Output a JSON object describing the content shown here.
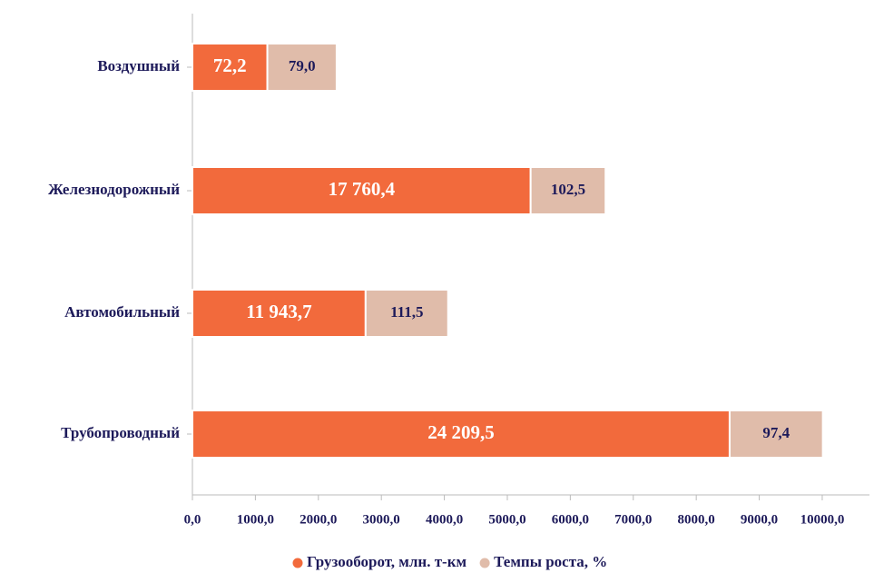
{
  "chart_data": {
    "type": "bar",
    "orientation": "horizontal",
    "stacked": true,
    "categories": [
      "Воздушный",
      "Железнодорожный",
      "Автомобильный",
      "Трубопроводный"
    ],
    "series": [
      {
        "name": "Грузооборот, млн. т-км",
        "color": "#f26a3c",
        "values": [
          1190,
          5370,
          2750,
          8530
        ],
        "value_labels": [
          "72,2",
          "17 760,4",
          "11 943,7",
          "24 209,5"
        ]
      },
      {
        "name": "Темпы роста, %",
        "color": "#e0bcaa",
        "values": [
          1100,
          1190,
          1310,
          1480
        ],
        "value_labels": [
          "79,0",
          "102,5",
          "111,5",
          "97,4"
        ]
      }
    ],
    "xlim": [
      0,
      10750
    ],
    "xticks": [
      {
        "value": 0,
        "label": "0,0"
      },
      {
        "value": 1000,
        "label": "1000,0"
      },
      {
        "value": 2000,
        "label": "2000,0"
      },
      {
        "value": 3000,
        "label": "3000,0"
      },
      {
        "value": 4000,
        "label": "4000,0"
      },
      {
        "value": 5000,
        "label": "5000,0"
      },
      {
        "value": 6000,
        "label": "6000,0"
      },
      {
        "value": 7000,
        "label": "7000,0"
      },
      {
        "value": 8000,
        "label": "8000,0"
      },
      {
        "value": 9000,
        "label": "9000,0"
      },
      {
        "value": 10000,
        "label": "10000,0"
      }
    ],
    "legend": "bottom"
  }
}
